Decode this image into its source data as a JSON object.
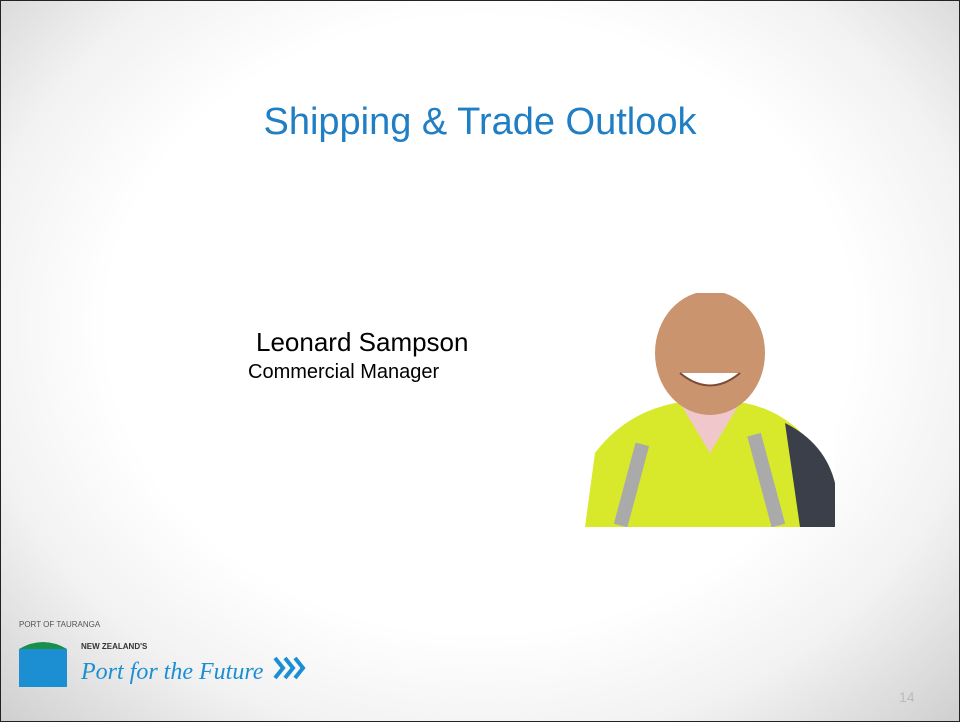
{
  "title": "Shipping & Trade Outlook",
  "speaker": {
    "name": "Leonard Sampson",
    "role": "Commercial Manager"
  },
  "logo": {
    "port": "PORT OF TAURANGA",
    "tagline": "NEW ZEALAND'S",
    "slogan": "Port for the Future"
  },
  "page_number": "14"
}
